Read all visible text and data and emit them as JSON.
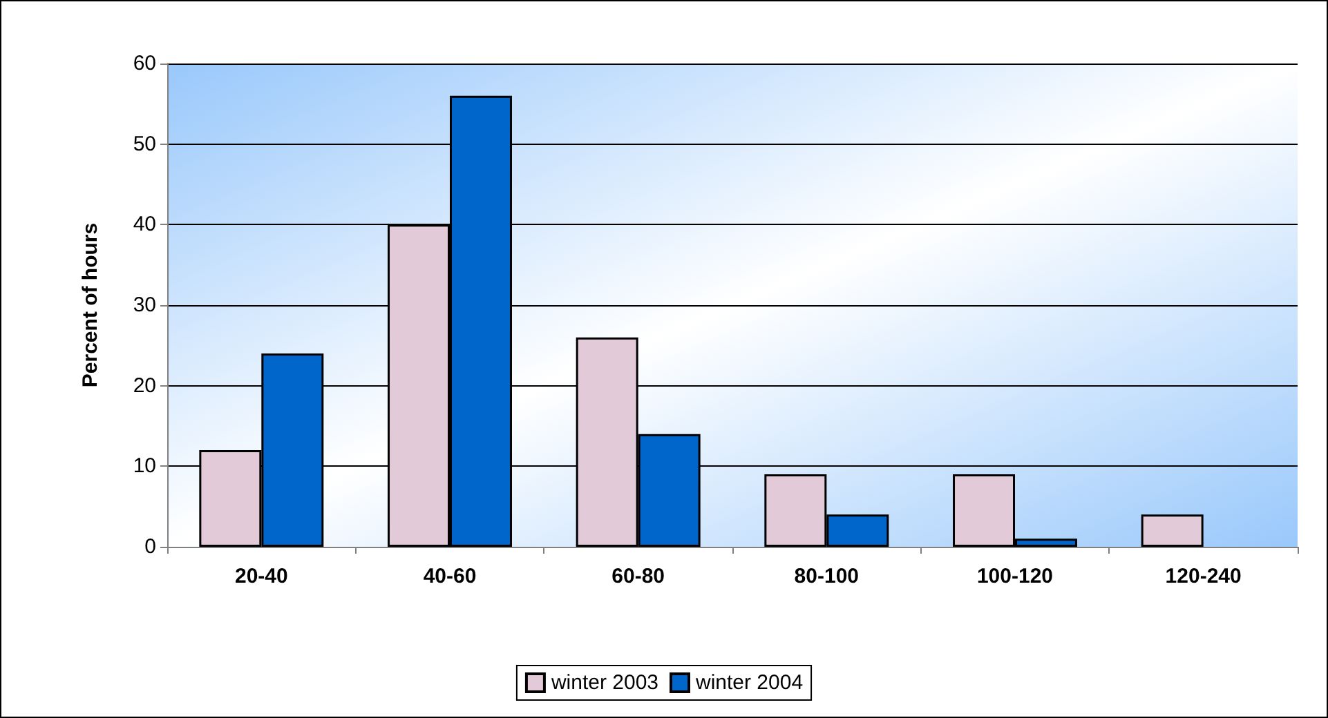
{
  "chart_data": {
    "type": "bar",
    "ylabel": "Percent of hours",
    "categories": [
      "20-40",
      "40-60",
      "60-80",
      "80-100",
      "100-120",
      "120-240"
    ],
    "series": [
      {
        "name": "winter 2003",
        "color": "#e3cad8",
        "values": [
          12,
          40,
          26,
          9,
          9,
          4
        ]
      },
      {
        "name": "winter 2004",
        "color": "#0066cc",
        "values": [
          24,
          56,
          14,
          4,
          1,
          null
        ]
      }
    ],
    "ylim": [
      0,
      60
    ],
    "yticks": [
      0,
      10,
      20,
      30,
      40,
      50,
      60
    ],
    "grid": "y",
    "legend": "bottom"
  }
}
